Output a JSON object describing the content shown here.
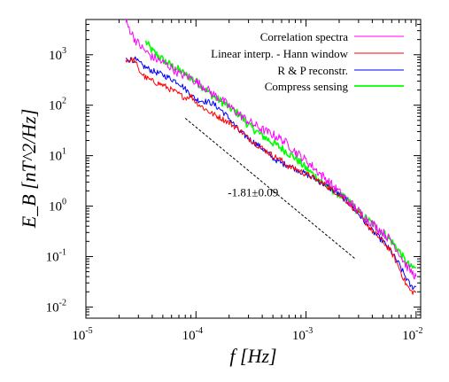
{
  "chart_data": {
    "type": "line",
    "xscale": "log",
    "yscale": "log",
    "xlim": [
      1e-05,
      0.011
    ],
    "ylim": [
      0.006,
      5000
    ],
    "xlabel": "f [Hz]",
    "ylabel": "E_B [nT^2/Hz]",
    "xticks": [
      {
        "base": "10",
        "exp": "-5",
        "value": 1e-05
      },
      {
        "base": "10",
        "exp": "-4",
        "value": 0.0001
      },
      {
        "base": "10",
        "exp": "-3",
        "value": 0.001
      },
      {
        "base": "10",
        "exp": "-2",
        "value": 0.01
      }
    ],
    "yticks": [
      {
        "base": "10",
        "exp": "-2",
        "value": 0.01
      },
      {
        "base": "10",
        "exp": "-1",
        "value": 0.1
      },
      {
        "base": "10",
        "exp": "0",
        "value": 1
      },
      {
        "base": "10",
        "exp": "1",
        "value": 10
      },
      {
        "base": "10",
        "exp": "2",
        "value": 100
      },
      {
        "base": "10",
        "exp": "3",
        "value": 1000
      }
    ],
    "legend_position": "top-right",
    "series": [
      {
        "name": "Correlation spectra",
        "color": "#ff00ff",
        "points": [
          [
            2.3e-05,
            4500
          ],
          [
            2.8e-05,
            2000
          ],
          [
            3.3e-05,
            1300
          ],
          [
            4e-05,
            900
          ],
          [
            5e-05,
            700
          ],
          [
            6e-05,
            560
          ],
          [
            7e-05,
            420
          ],
          [
            8e-05,
            380
          ],
          [
            9e-05,
            350
          ],
          [
            0.0001,
            290
          ],
          [
            0.00012,
            230
          ],
          [
            0.00014,
            170
          ],
          [
            0.00017,
            130
          ],
          [
            0.0002,
            95
          ],
          [
            0.00025,
            65
          ],
          [
            0.0003,
            48
          ],
          [
            0.0004,
            33
          ],
          [
            0.0005,
            26
          ],
          [
            0.0006,
            21
          ],
          [
            0.0007,
            16
          ],
          [
            0.0008,
            12
          ],
          [
            0.001,
            8
          ],
          [
            0.0012,
            5.5
          ],
          [
            0.0015,
            3.5
          ],
          [
            0.002,
            1.9
          ],
          [
            0.0025,
            1.2
          ],
          [
            0.003,
            0.8
          ],
          [
            0.004,
            0.45
          ],
          [
            0.005,
            0.3
          ],
          [
            0.006,
            0.2
          ],
          [
            0.007,
            0.12
          ],
          [
            0.008,
            0.07
          ],
          [
            0.009,
            0.05
          ],
          [
            0.01,
            0.04
          ]
        ]
      },
      {
        "name": "Linear interp. - Hann window",
        "color": "#ff0000",
        "points": [
          [
            2.3e-05,
            800
          ],
          [
            2.8e-05,
            780
          ],
          [
            3e-05,
            500
          ],
          [
            3.5e-05,
            350
          ],
          [
            4e-05,
            300
          ],
          [
            5e-05,
            250
          ],
          [
            6e-05,
            200
          ],
          [
            7e-05,
            165
          ],
          [
            8e-05,
            140
          ],
          [
            9e-05,
            155
          ],
          [
            0.0001,
            115
          ],
          [
            0.00012,
            85
          ],
          [
            0.00014,
            68
          ],
          [
            0.00017,
            55
          ],
          [
            0.0002,
            45
          ],
          [
            0.00025,
            32
          ],
          [
            0.0003,
            22
          ],
          [
            0.0004,
            14
          ],
          [
            0.0005,
            10
          ],
          [
            0.0006,
            8
          ],
          [
            0.0007,
            6
          ],
          [
            0.0008,
            5.5
          ],
          [
            0.001,
            4.3
          ],
          [
            0.0012,
            3.5
          ],
          [
            0.0015,
            2.6
          ],
          [
            0.002,
            1.7
          ],
          [
            0.0025,
            1.1
          ],
          [
            0.003,
            0.7
          ],
          [
            0.004,
            0.32
          ],
          [
            0.005,
            0.2
          ],
          [
            0.006,
            0.12
          ],
          [
            0.007,
            0.06
          ],
          [
            0.008,
            0.03
          ],
          [
            0.009,
            0.02
          ],
          [
            0.01,
            0.02
          ]
        ]
      },
      {
        "name": "R & P reconstr.",
        "color": "#0000ff",
        "points": [
          [
            2.3e-05,
            800
          ],
          [
            2.8e-05,
            800
          ],
          [
            3.3e-05,
            600
          ],
          [
            4e-05,
            480
          ],
          [
            5e-05,
            400
          ],
          [
            6e-05,
            330
          ],
          [
            7e-05,
            280
          ],
          [
            8e-05,
            210
          ],
          [
            9e-05,
            160
          ],
          [
            0.0001,
            130
          ],
          [
            0.00012,
            120
          ],
          [
            0.00014,
            110
          ],
          [
            0.00017,
            80
          ],
          [
            0.0002,
            55
          ],
          [
            0.00025,
            30
          ],
          [
            0.0003,
            22
          ],
          [
            0.0004,
            14
          ],
          [
            0.0005,
            9
          ],
          [
            0.0006,
            7
          ],
          [
            0.0007,
            6.5
          ],
          [
            0.0008,
            5.5
          ],
          [
            0.001,
            4.3
          ],
          [
            0.0012,
            3.5
          ],
          [
            0.0015,
            2.6
          ],
          [
            0.002,
            1.7
          ],
          [
            0.0025,
            1.1
          ],
          [
            0.003,
            0.7
          ],
          [
            0.004,
            0.32
          ],
          [
            0.005,
            0.2
          ],
          [
            0.006,
            0.12
          ],
          [
            0.007,
            0.07
          ],
          [
            0.008,
            0.04
          ],
          [
            0.009,
            0.025
          ],
          [
            0.01,
            0.025
          ]
        ]
      },
      {
        "name": "Compress sensing",
        "color": "#00ff00",
        "points": [
          [
            3.5e-05,
            1800
          ],
          [
            4e-05,
            1200
          ],
          [
            5e-05,
            800
          ],
          [
            6e-05,
            600
          ],
          [
            7e-05,
            500
          ],
          [
            8e-05,
            400
          ],
          [
            9e-05,
            350
          ],
          [
            0.0001,
            300
          ],
          [
            0.00012,
            210
          ],
          [
            0.00015,
            140
          ],
          [
            0.00018,
            110
          ],
          [
            0.0002,
            90
          ],
          [
            0.00025,
            65
          ],
          [
            0.0003,
            40
          ],
          [
            0.0004,
            25
          ],
          [
            0.0005,
            18
          ],
          [
            0.0006,
            14
          ],
          [
            0.0007,
            11
          ],
          [
            0.0008,
            9
          ],
          [
            0.001,
            5.6
          ],
          [
            0.0012,
            4
          ],
          [
            0.0015,
            2.6
          ],
          [
            0.002,
            1.7
          ],
          [
            0.0025,
            1.2
          ],
          [
            0.003,
            0.75
          ],
          [
            0.004,
            0.45
          ],
          [
            0.005,
            0.3
          ],
          [
            0.006,
            0.2
          ],
          [
            0.007,
            0.13
          ],
          [
            0.008,
            0.08
          ],
          [
            0.009,
            0.06
          ],
          [
            0.01,
            0.06
          ]
        ]
      }
    ],
    "fit_line": {
      "color": "#000000",
      "x": [
        8e-05,
        0.0028
      ],
      "y": [
        55,
        0.09
      ]
    },
    "annotation": {
      "text": "-1.81±0.09",
      "x": 0.00033,
      "y": 1.55
    }
  }
}
